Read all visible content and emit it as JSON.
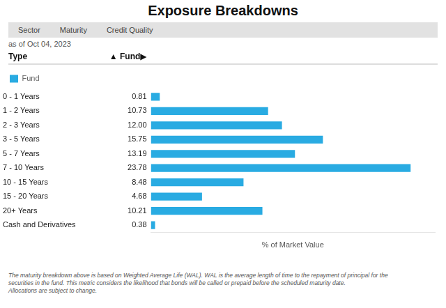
{
  "chart_data": {
    "type": "bar",
    "orientation": "horizontal",
    "title": "Exposure Breakdowns",
    "subtitle": "as of Oct 04, 2023",
    "tabs": [
      "Sector",
      "Maturity",
      "Credit Quality"
    ],
    "x_label": "% of Market Value",
    "y_label": "Type",
    "annotations": [
      "▲",
      "Fund▶"
    ],
    "categories": [
      "0 - 1 Years",
      "1 - 2 Years",
      "2 - 3 Years",
      "3 - 5 Years",
      "5 - 7 Years",
      "7 - 10 Years",
      "10 - 15 Years",
      "15 - 20 Years",
      "20+ Years",
      "Cash and Derivatives"
    ],
    "series": [
      {
        "name": "Fund",
        "color": "#29ABE2",
        "values": [
          0.81,
          10.73,
          12.0,
          15.75,
          13.19,
          23.78,
          8.48,
          4.68,
          10.21,
          0.38
        ],
        "value_labels": [
          "0.81",
          "10.73",
          "12.00",
          "15.75",
          "13.19",
          "23.78",
          "8.48",
          "4.68",
          "10.21",
          "0.38"
        ]
      }
    ],
    "xlim": [
      0,
      26
    ],
    "tick_labels": "y",
    "grid": false,
    "legend": "top",
    "data_labels": true,
    "footnotes": [
      "The maturity breakdown above is based on Weighted Average Life (WAL). WAL is the average length of time to the repayment of principal for the",
      "securities in the fund. This metric considers the likelihood that bonds will be called or prepaid before the scheduled maturity date.",
      "Allocations are subject to change."
    ]
  }
}
